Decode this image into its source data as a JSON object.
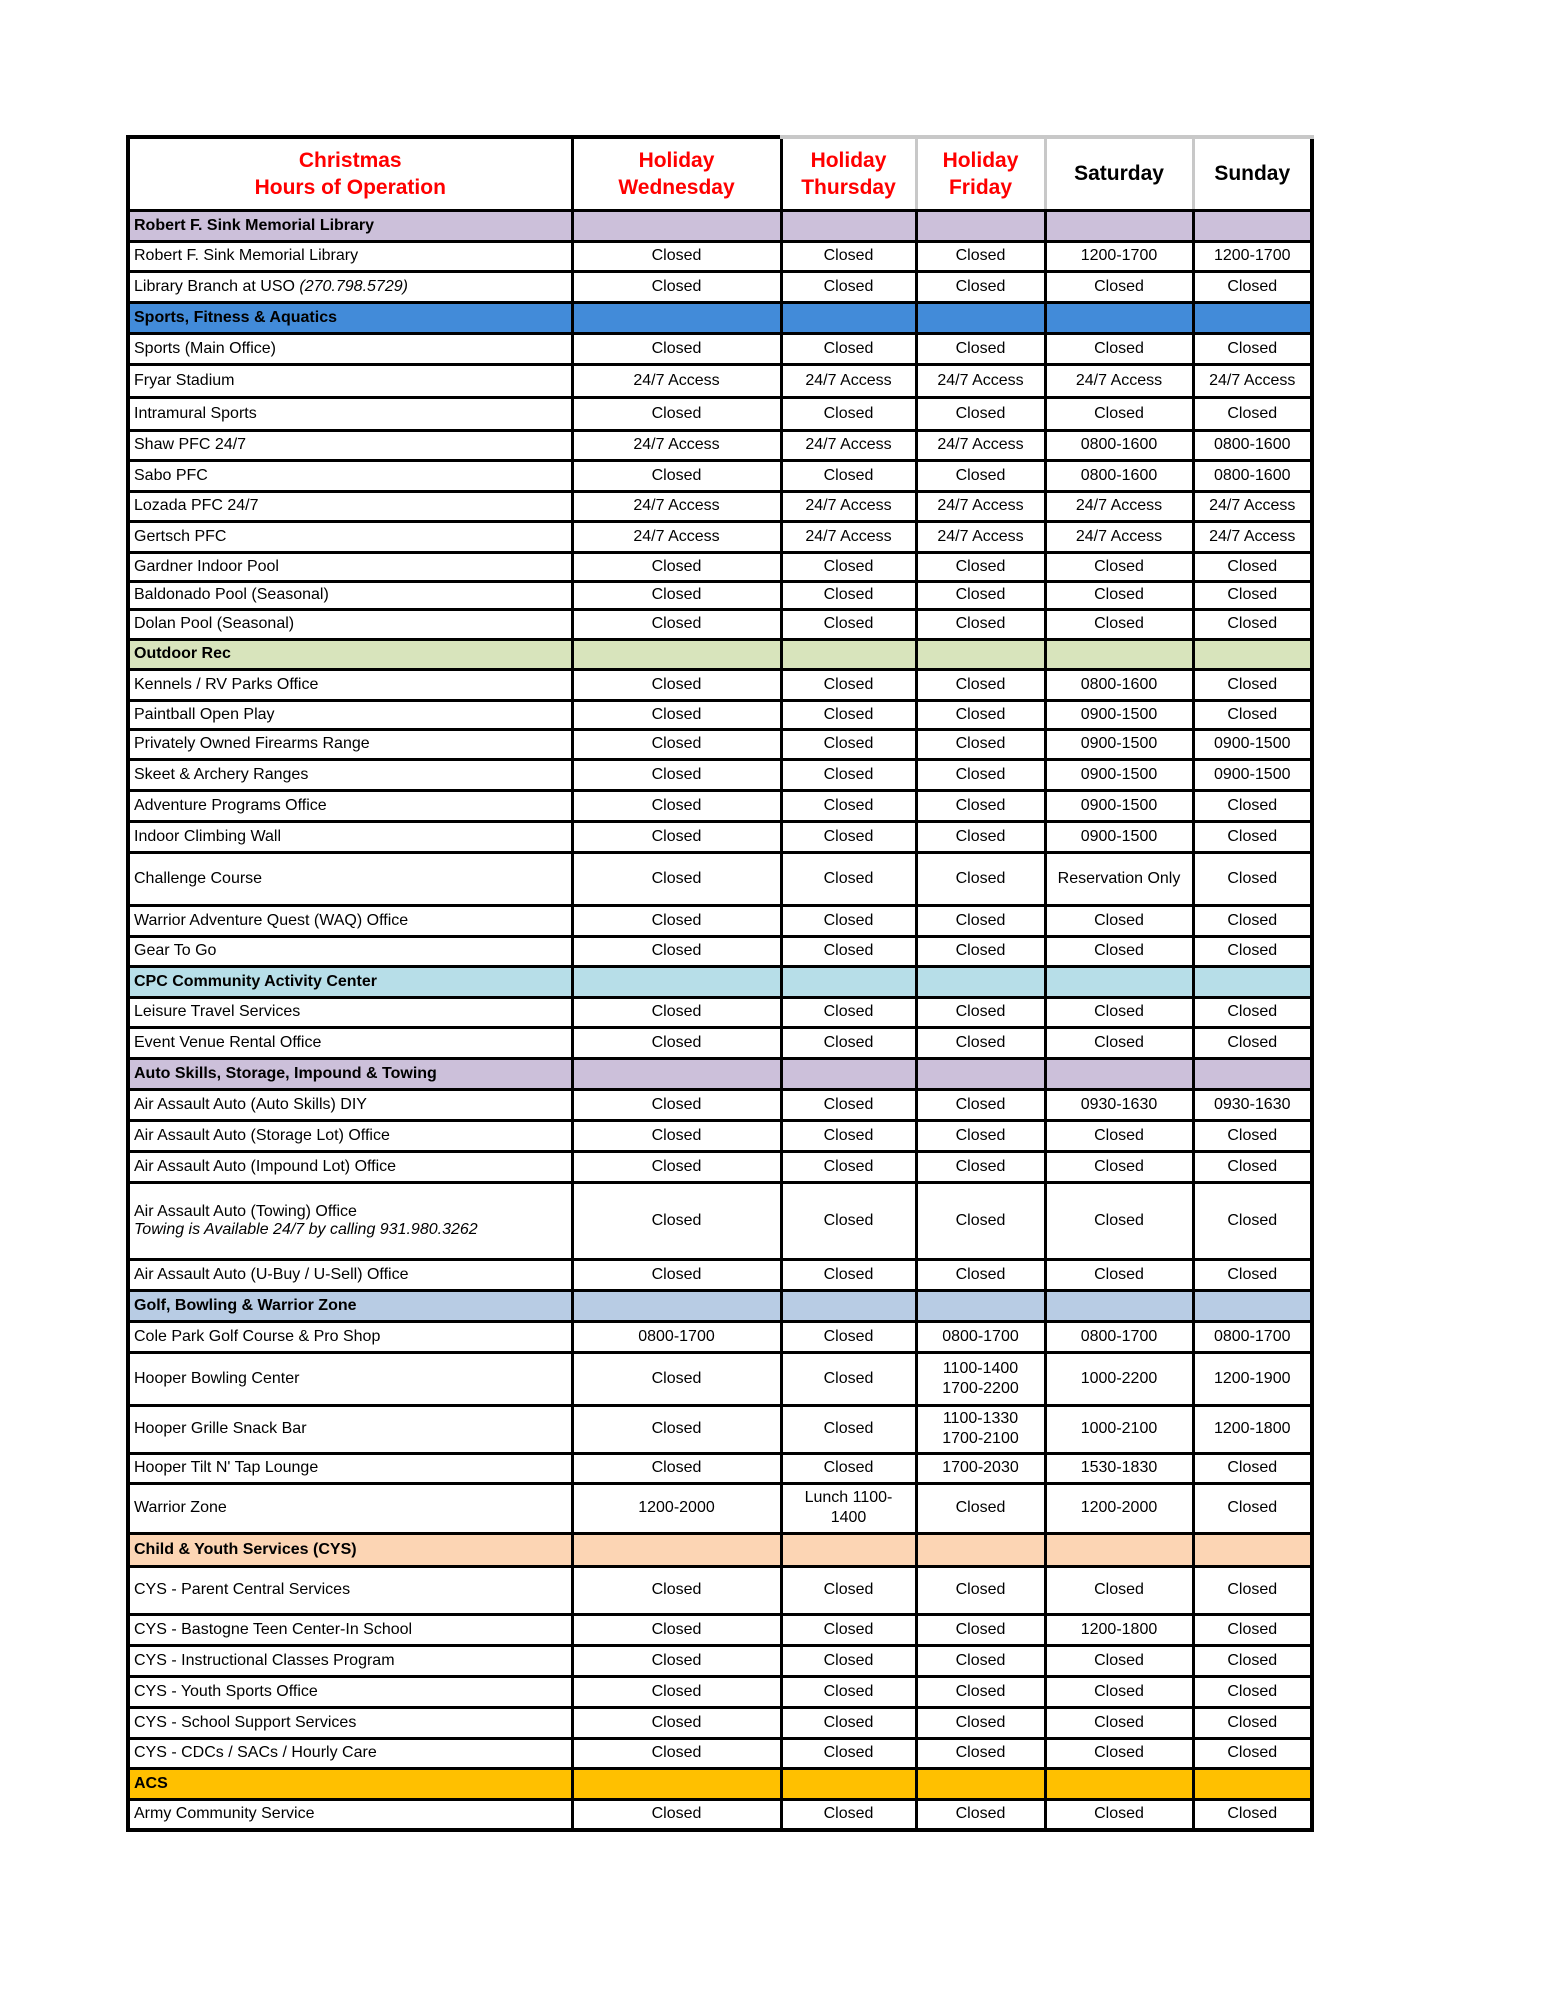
{
  "header": {
    "title_line1": "Christmas",
    "title_line2": "Hours of Operation",
    "columns": [
      {
        "line1": "Holiday",
        "line2": "Wednesday",
        "color": "#ff0000"
      },
      {
        "line1": "Holiday",
        "line2": "Thursday",
        "color": "#ff0000"
      },
      {
        "line1": "Holiday",
        "line2": "Friday",
        "color": "#ff0000"
      },
      {
        "line1": "Saturday",
        "line2": "",
        "color": "#000000"
      },
      {
        "line1": "Sunday",
        "line2": "",
        "color": "#000000"
      }
    ]
  },
  "sections": [
    {
      "title": "Robert F. Sink Memorial Library",
      "color": "#ccc0da",
      "rows": [
        {
          "name": "Robert F. Sink Memorial Library",
          "values": [
            "Closed",
            "Closed",
            "Closed",
            "1200-1700",
            "1200-1700"
          ]
        },
        {
          "name": "Library Branch at USO ",
          "note": "(270.798.5729)",
          "values": [
            "Closed",
            "Closed",
            "Closed",
            "Closed",
            "Closed"
          ]
        }
      ]
    },
    {
      "title": "Sports, Fitness & Aquatics",
      "color": "#428bd9",
      "rows": [
        {
          "name": "Sports (Main Office)",
          "values": [
            "Closed",
            "Closed",
            "Closed",
            "Closed",
            "Closed"
          ]
        },
        {
          "name": "Fryar Stadium",
          "values": [
            "24/7 Access",
            "24/7 Access",
            "24/7 Access",
            "24/7 Access",
            "24/7 Access"
          ]
        },
        {
          "name": "Intramural Sports",
          "values": [
            "Closed",
            "Closed",
            "Closed",
            "Closed",
            "Closed"
          ]
        },
        {
          "name": "Shaw PFC 24/7",
          "values": [
            "24/7 Access",
            "24/7 Access",
            "24/7 Access",
            "0800-1600",
            "0800-1600"
          ]
        },
        {
          "name": "Sabo PFC",
          "values": [
            "Closed",
            "Closed",
            "Closed",
            "0800-1600",
            "0800-1600"
          ]
        },
        {
          "name": "Lozada PFC 24/7",
          "values": [
            "24/7 Access",
            "24/7 Access",
            "24/7 Access",
            "24/7 Access",
            "24/7 Access"
          ]
        },
        {
          "name": "Gertsch PFC",
          "values": [
            "24/7 Access",
            "24/7 Access",
            "24/7 Access",
            "24/7 Access",
            "24/7 Access"
          ]
        },
        {
          "name": "Gardner Indoor Pool",
          "values": [
            "Closed",
            "Closed",
            "Closed",
            "Closed",
            "Closed"
          ]
        },
        {
          "name": "Baldonado Pool (Seasonal)",
          "values": [
            "Closed",
            "Closed",
            "Closed",
            "Closed",
            "Closed"
          ]
        },
        {
          "name": "Dolan Pool (Seasonal)",
          "values": [
            "Closed",
            "Closed",
            "Closed",
            "Closed",
            "Closed"
          ]
        }
      ]
    },
    {
      "title": "Outdoor Rec",
      "color": "#d8e4bc",
      "rows": [
        {
          "name": "Kennels / RV Parks Office",
          "values": [
            "Closed",
            "Closed",
            "Closed",
            "0800-1600",
            "Closed"
          ]
        },
        {
          "name": "Paintball Open Play",
          "values": [
            "Closed",
            "Closed",
            "Closed",
            "0900-1500",
            "Closed"
          ]
        },
        {
          "name": "Privately Owned Firearms Range",
          "values": [
            "Closed",
            "Closed",
            "Closed",
            "0900-1500",
            "0900-1500"
          ]
        },
        {
          "name": "Skeet & Archery Ranges",
          "values": [
            "Closed",
            "Closed",
            "Closed",
            "0900-1500",
            "0900-1500"
          ]
        },
        {
          "name": "Adventure Programs Office",
          "values": [
            "Closed",
            "Closed",
            "Closed",
            "0900-1500",
            "Closed"
          ]
        },
        {
          "name": "Indoor Climbing Wall",
          "values": [
            "Closed",
            "Closed",
            "Closed",
            "0900-1500",
            "Closed"
          ]
        },
        {
          "name": "Challenge Course",
          "values": [
            "Closed",
            "Closed",
            "Closed",
            "Reservation Only",
            "Closed"
          ]
        },
        {
          "name": "Warrior Adventure Quest (WAQ) Office",
          "values": [
            "Closed",
            "Closed",
            "Closed",
            "Closed",
            "Closed"
          ]
        },
        {
          "name": "Gear To Go",
          "values": [
            "Closed",
            "Closed",
            "Closed",
            "Closed",
            "Closed"
          ]
        }
      ]
    },
    {
      "title": "CPC Community Activity Center",
      "color": "#b7dee8",
      "rows": [
        {
          "name": "Leisure Travel Services",
          "values": [
            "Closed",
            "Closed",
            "Closed",
            "Closed",
            "Closed"
          ]
        },
        {
          "name": "Event Venue Rental Office",
          "values": [
            "Closed",
            "Closed",
            "Closed",
            "Closed",
            "Closed"
          ]
        }
      ]
    },
    {
      "title": "Auto Skills, Storage, Impound & Towing",
      "color": "#ccc0da",
      "rows": [
        {
          "name": "Air Assault Auto (Auto Skills) DIY",
          "values": [
            "Closed",
            "Closed",
            "Closed",
            "0930-1630",
            "0930-1630"
          ]
        },
        {
          "name": "Air Assault Auto (Storage Lot) Office",
          "values": [
            "Closed",
            "Closed",
            "Closed",
            "Closed",
            "Closed"
          ]
        },
        {
          "name": "Air Assault Auto (Impound Lot) Office",
          "values": [
            "Closed",
            "Closed",
            "Closed",
            "Closed",
            "Closed"
          ]
        },
        {
          "name": "Air Assault Auto (Towing) Office",
          "note_block": "Towing is Available 24/7 by calling 931.980.3262",
          "values": [
            "Closed",
            "Closed",
            "Closed",
            "Closed",
            "Closed"
          ]
        },
        {
          "name": "Air Assault Auto (U-Buy / U-Sell) Office",
          "values": [
            "Closed",
            "Closed",
            "Closed",
            "Closed",
            "Closed"
          ]
        }
      ]
    },
    {
      "title": "Golf, Bowling & Warrior Zone",
      "color": "#b8cce4",
      "rows": [
        {
          "name": "Cole Park Golf Course & Pro Shop",
          "values": [
            "0800-1700",
            "Closed",
            "0800-1700",
            "0800-1700",
            "0800-1700"
          ]
        },
        {
          "name": "Hooper Bowling Center",
          "values": [
            "Closed",
            "Closed",
            "1100-1400\n1700-2200",
            "1000-2200",
            "1200-1900"
          ]
        },
        {
          "name": "Hooper Grille Snack Bar",
          "values": [
            "Closed",
            "Closed",
            "1100-1330\n1700-2100",
            "1000-2100",
            "1200-1800"
          ]
        },
        {
          "name": "Hooper Tilt N' Tap Lounge",
          "values": [
            "Closed",
            "Closed",
            "1700-2030",
            "1530-1830",
            "Closed"
          ]
        },
        {
          "name": "Warrior Zone",
          "values": [
            "1200-2000",
            "Lunch 1100-\n1400",
            "Closed",
            "1200-2000",
            "Closed"
          ]
        }
      ]
    },
    {
      "title": "Child & Youth Services (CYS)",
      "color": "#fcd5b4",
      "rows": [
        {
          "name": "CYS - Parent Central Services",
          "values": [
            "Closed",
            "Closed",
            "Closed",
            "Closed",
            "Closed"
          ]
        },
        {
          "name": "CYS - Bastogne Teen Center-In School",
          "values": [
            "Closed",
            "Closed",
            "Closed",
            "1200-1800",
            "Closed"
          ]
        },
        {
          "name": "CYS - Instructional Classes Program",
          "values": [
            "Closed",
            "Closed",
            "Closed",
            "Closed",
            "Closed"
          ]
        },
        {
          "name": "CYS - Youth Sports Office",
          "values": [
            "Closed",
            "Closed",
            "Closed",
            "Closed",
            "Closed"
          ]
        },
        {
          "name": "CYS - School Support Services",
          "values": [
            "Closed",
            "Closed",
            "Closed",
            "Closed",
            "Closed"
          ]
        },
        {
          "name": "CYS - CDCs / SACs / Hourly Care",
          "values": [
            "Closed",
            "Closed",
            "Closed",
            "Closed",
            "Closed"
          ]
        }
      ]
    },
    {
      "title": "ACS",
      "color": "#ffc000",
      "rows": [
        {
          "name": "Army Community Service",
          "values": [
            "Closed",
            "Closed",
            "Closed",
            "Closed",
            "Closed"
          ]
        }
      ]
    }
  ]
}
